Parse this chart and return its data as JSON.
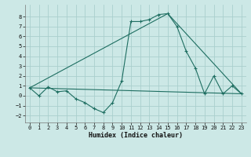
{
  "title": "",
  "xlabel": "Humidex (Indice chaleur)",
  "xlim": [
    -0.5,
    23.5
  ],
  "ylim": [
    -2.7,
    9.2
  ],
  "yticks": [
    -2,
    -1,
    0,
    1,
    2,
    3,
    4,
    5,
    6,
    7,
    8
  ],
  "xticks": [
    0,
    1,
    2,
    3,
    4,
    5,
    6,
    7,
    8,
    9,
    10,
    11,
    12,
    13,
    14,
    15,
    16,
    17,
    18,
    19,
    20,
    21,
    22,
    23
  ],
  "background_color": "#cce8e6",
  "grid_color": "#aacfcd",
  "line_color": "#1e6e61",
  "line1_x": [
    0,
    1,
    2,
    3,
    4,
    5,
    6,
    7,
    8,
    9,
    10,
    11,
    12,
    13,
    14,
    15,
    16,
    17,
    18,
    19,
    20,
    21,
    22,
    23
  ],
  "line1_y": [
    0.8,
    0.0,
    0.9,
    0.4,
    0.5,
    -0.3,
    -0.7,
    -1.3,
    -1.7,
    -0.7,
    1.5,
    7.5,
    7.5,
    7.7,
    8.2,
    8.3,
    7.0,
    4.5,
    2.8,
    0.2,
    2.0,
    0.2,
    1.0,
    0.2
  ],
  "line2_x": [
    0,
    23
  ],
  "line2_y": [
    0.8,
    0.2
  ],
  "line3_x": [
    0,
    15,
    23
  ],
  "line3_y": [
    0.8,
    8.3,
    0.2
  ],
  "tick_fontsize": 5.0,
  "xlabel_fontsize": 6.0
}
